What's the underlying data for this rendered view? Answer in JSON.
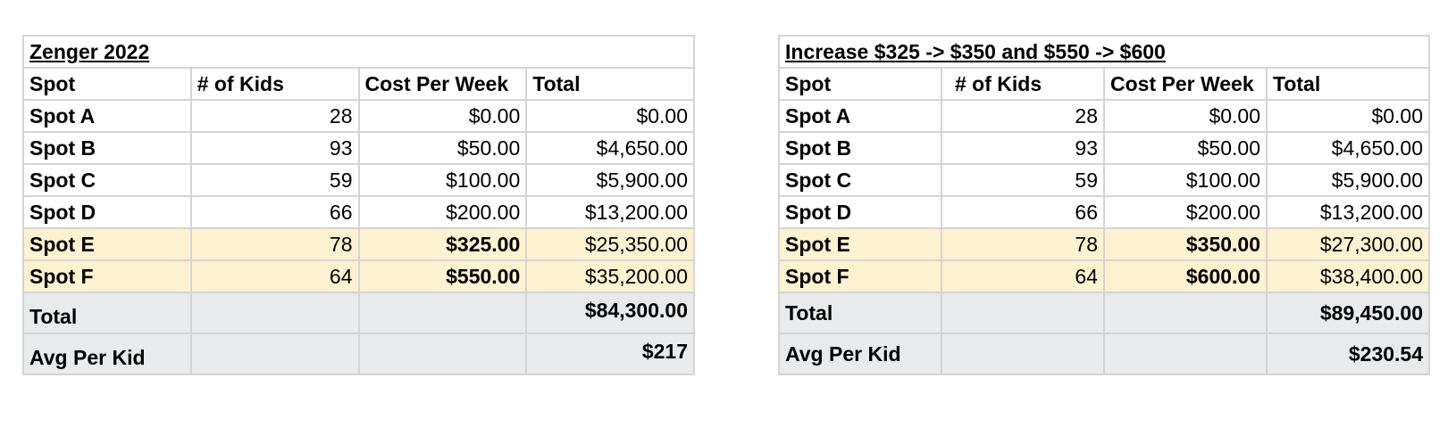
{
  "tables": [
    {
      "title": "Zenger 2022",
      "headers": [
        "Spot",
        "# of Kids",
        "Cost Per Week",
        "Total"
      ],
      "rows": [
        {
          "spot": "Spot A",
          "kids": "28",
          "cost": "$0.00",
          "total": "$0.00",
          "highlight": false
        },
        {
          "spot": "Spot B",
          "kids": "93",
          "cost": "$50.00",
          "total": "$4,650.00",
          "highlight": false
        },
        {
          "spot": "Spot C",
          "kids": "59",
          "cost": "$100.00",
          "total": "$5,900.00",
          "highlight": false
        },
        {
          "spot": "Spot D",
          "kids": "66",
          "cost": "$200.00",
          "total": "$13,200.00",
          "highlight": false
        },
        {
          "spot": "Spot E",
          "kids": "78",
          "cost": "$325.00",
          "total": "$25,350.00",
          "highlight": true
        },
        {
          "spot": "Spot F",
          "kids": "64",
          "cost": "$550.00",
          "total": "$35,200.00",
          "highlight": true
        }
      ],
      "total_label": "Total",
      "total_value": "$84,300.00",
      "avg_label": "Avg Per Kid",
      "avg_value": "$217"
    },
    {
      "title": "Increase $325 -> $350 and $550 -> $600",
      "headers": [
        "Spot",
        "# of Kids",
        "Cost Per Week",
        "Total"
      ],
      "rows": [
        {
          "spot": "Spot A",
          "kids": "28",
          "cost": "$0.00",
          "total": "$0.00",
          "highlight": false
        },
        {
          "spot": "Spot B",
          "kids": "93",
          "cost": "$50.00",
          "total": "$4,650.00",
          "highlight": false
        },
        {
          "spot": "Spot C",
          "kids": "59",
          "cost": "$100.00",
          "total": "$5,900.00",
          "highlight": false
        },
        {
          "spot": "Spot D",
          "kids": "66",
          "cost": "$200.00",
          "total": "$13,200.00",
          "highlight": false
        },
        {
          "spot": "Spot E",
          "kids": "78",
          "cost": "$350.00",
          "total": "$27,300.00",
          "highlight": true
        },
        {
          "spot": "Spot F",
          "kids": "64",
          "cost": "$600.00",
          "total": "$38,400.00",
          "highlight": true
        }
      ],
      "total_label": "Total",
      "total_value": "$89,450.00",
      "avg_label": "Avg Per Kid",
      "avg_value": "$230.54"
    }
  ],
  "colors": {
    "highlight_row": "#fdf2d0",
    "summary_row": "#e8eaeb",
    "grid_line": "#d4d4d4"
  }
}
